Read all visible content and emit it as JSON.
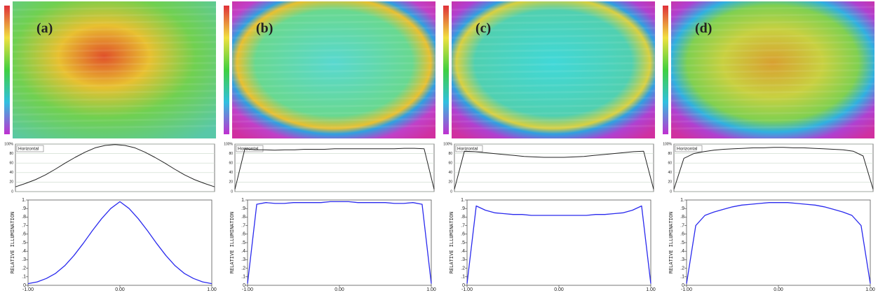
{
  "chart_data": [
    {
      "type": "line",
      "annotation": "(a)",
      "xlim": [
        -1,
        1
      ],
      "ylim": [
        0,
        100
      ],
      "yticks": [
        0,
        20,
        40,
        60,
        80,
        {
          "value": 100,
          "label": "100%"
        }
      ],
      "x": [
        -1,
        -0.9,
        -0.8,
        -0.7,
        -0.6,
        -0.5,
        -0.4,
        -0.3,
        -0.2,
        -0.1,
        0,
        0.1,
        0.2,
        0.3,
        0.4,
        0.5,
        0.6,
        0.7,
        0.8,
        0.9,
        1
      ],
      "series": [
        {
          "name": "Horizontal",
          "color": "#222222",
          "values": [
            10,
            17,
            25,
            35,
            47,
            60,
            72,
            83,
            92,
            97,
            99,
            97,
            92,
            83,
            72,
            60,
            47,
            35,
            25,
            17,
            10
          ]
        }
      ]
    },
    {
      "type": "line",
      "ylabel": "RELATIVE ILLUMINATION",
      "xlim": [
        -1,
        1
      ],
      "ylim": [
        0,
        1
      ],
      "xticks": [
        {
          "value": -1,
          "label": "-1.00"
        },
        {
          "value": 0,
          "label": "0.00"
        },
        {
          "value": 1,
          "label": "1.00"
        }
      ],
      "yticks": [
        0,
        {
          "value": 0.1,
          "label": ".1"
        },
        {
          "value": 0.2,
          "label": ".2"
        },
        {
          "value": 0.3,
          "label": ".3"
        },
        {
          "value": 0.4,
          "label": ".4"
        },
        {
          "value": 0.5,
          "label": ".5"
        },
        {
          "value": 0.6,
          "label": ".6"
        },
        {
          "value": 0.7,
          "label": ".7"
        },
        {
          "value": 0.8,
          "label": ".8"
        },
        {
          "value": 0.9,
          "label": ".9"
        },
        {
          "value": 1,
          "label": "1."
        }
      ],
      "x": [
        -1,
        -0.9,
        -0.8,
        -0.7,
        -0.6,
        -0.5,
        -0.4,
        -0.3,
        -0.2,
        -0.1,
        0,
        0.1,
        0.2,
        0.3,
        0.4,
        0.5,
        0.6,
        0.7,
        0.8,
        0.9,
        1
      ],
      "series": [
        {
          "color": "#2a2aee",
          "values": [
            0.02,
            0.04,
            0.08,
            0.14,
            0.23,
            0.35,
            0.49,
            0.64,
            0.78,
            0.9,
            0.98,
            0.9,
            0.78,
            0.64,
            0.49,
            0.35,
            0.23,
            0.14,
            0.08,
            0.04,
            0.02
          ]
        }
      ]
    },
    {
      "type": "line",
      "annotation": "(b)",
      "xlim": [
        -1,
        1
      ],
      "ylim": [
        0,
        100
      ],
      "yticks": [
        0,
        20,
        40,
        60,
        80,
        {
          "value": 100,
          "label": "100%"
        }
      ],
      "x": [
        -1,
        -0.9,
        -0.8,
        -0.7,
        -0.6,
        -0.5,
        -0.4,
        -0.3,
        -0.2,
        -0.1,
        0,
        0.1,
        0.2,
        0.3,
        0.4,
        0.5,
        0.6,
        0.7,
        0.8,
        0.9,
        1
      ],
      "series": [
        {
          "name": "Horizontal",
          "color": "#222222",
          "values": [
            5,
            90,
            88,
            88,
            87,
            88,
            88,
            89,
            89,
            89,
            90,
            90,
            90,
            90,
            90,
            90,
            90,
            91,
            91,
            90,
            5
          ]
        }
      ]
    },
    {
      "type": "line",
      "ylabel": "RELATIVE ILLUMINATION",
      "xlim": [
        -1,
        1
      ],
      "ylim": [
        0,
        1
      ],
      "xticks": [
        {
          "value": -1,
          "label": "-1.00"
        },
        {
          "value": 0,
          "label": "0.00"
        },
        {
          "value": 1,
          "label": "1.00"
        }
      ],
      "yticks": [
        0,
        {
          "value": 0.1,
          "label": ".1"
        },
        {
          "value": 0.2,
          "label": ".2"
        },
        {
          "value": 0.3,
          "label": ".3"
        },
        {
          "value": 0.4,
          "label": ".4"
        },
        {
          "value": 0.5,
          "label": ".5"
        },
        {
          "value": 0.6,
          "label": ".6"
        },
        {
          "value": 0.7,
          "label": ".7"
        },
        {
          "value": 0.8,
          "label": ".8"
        },
        {
          "value": 0.9,
          "label": ".9"
        },
        {
          "value": 1,
          "label": "1."
        }
      ],
      "x": [
        -1,
        -0.9,
        -0.8,
        -0.7,
        -0.6,
        -0.5,
        -0.4,
        -0.3,
        -0.2,
        -0.1,
        0,
        0.1,
        0.2,
        0.3,
        0.4,
        0.5,
        0.6,
        0.7,
        0.8,
        0.9,
        1
      ],
      "series": [
        {
          "color": "#2a2aee",
          "values": [
            0.02,
            0.95,
            0.97,
            0.96,
            0.96,
            0.97,
            0.97,
            0.97,
            0.97,
            0.98,
            0.98,
            0.98,
            0.97,
            0.97,
            0.97,
            0.97,
            0.96,
            0.96,
            0.97,
            0.95,
            0.02
          ]
        }
      ]
    },
    {
      "type": "line",
      "annotation": "(c)",
      "xlim": [
        -1,
        1
      ],
      "ylim": [
        0,
        100
      ],
      "yticks": [
        0,
        20,
        40,
        60,
        80,
        {
          "value": 100,
          "label": "100%"
        }
      ],
      "x": [
        -1,
        -0.9,
        -0.8,
        -0.7,
        -0.6,
        -0.5,
        -0.4,
        -0.3,
        -0.2,
        -0.1,
        0,
        0.1,
        0.2,
        0.3,
        0.4,
        0.5,
        0.6,
        0.7,
        0.8,
        0.9,
        1
      ],
      "series": [
        {
          "name": "Horizontal",
          "color": "#222222",
          "values": [
            5,
            85,
            84,
            82,
            80,
            78,
            76,
            74,
            73,
            72,
            72,
            72,
            73,
            74,
            76,
            78,
            80,
            82,
            84,
            85,
            5
          ]
        }
      ]
    },
    {
      "type": "line",
      "ylabel": "RELATIVE ILLUMINATION",
      "xlim": [
        -1,
        1
      ],
      "ylim": [
        0,
        1
      ],
      "xticks": [
        {
          "value": -1,
          "label": "-1.00"
        },
        {
          "value": 0,
          "label": "0.00"
        },
        {
          "value": 1,
          "label": "1.00"
        }
      ],
      "yticks": [
        0,
        {
          "value": 0.1,
          "label": ".1"
        },
        {
          "value": 0.2,
          "label": ".2"
        },
        {
          "value": 0.3,
          "label": ".3"
        },
        {
          "value": 0.4,
          "label": ".4"
        },
        {
          "value": 0.5,
          "label": ".5"
        },
        {
          "value": 0.6,
          "label": ".6"
        },
        {
          "value": 0.7,
          "label": ".7"
        },
        {
          "value": 0.8,
          "label": ".8"
        },
        {
          "value": 0.9,
          "label": ".9"
        },
        {
          "value": 1,
          "label": "1."
        }
      ],
      "x": [
        -1,
        -0.9,
        -0.8,
        -0.7,
        -0.6,
        -0.5,
        -0.4,
        -0.3,
        -0.2,
        -0.1,
        0,
        0.1,
        0.2,
        0.3,
        0.4,
        0.5,
        0.6,
        0.7,
        0.8,
        0.9,
        1
      ],
      "series": [
        {
          "color": "#2a2aee",
          "values": [
            0.02,
            0.93,
            0.88,
            0.85,
            0.84,
            0.83,
            0.83,
            0.82,
            0.82,
            0.82,
            0.82,
            0.82,
            0.82,
            0.82,
            0.83,
            0.83,
            0.84,
            0.85,
            0.88,
            0.93,
            0.02
          ]
        }
      ]
    },
    {
      "type": "line",
      "annotation": "(d)",
      "xlim": [
        -1,
        1
      ],
      "ylim": [
        0,
        100
      ],
      "yticks": [
        0,
        20,
        40,
        60,
        80,
        {
          "value": 100,
          "label": "100%"
        }
      ],
      "x": [
        -1,
        -0.9,
        -0.8,
        -0.7,
        -0.6,
        -0.5,
        -0.4,
        -0.3,
        -0.2,
        -0.1,
        0,
        0.1,
        0.2,
        0.3,
        0.4,
        0.5,
        0.6,
        0.7,
        0.8,
        0.9,
        1
      ],
      "series": [
        {
          "name": "Horizontal",
          "color": "#222222",
          "values": [
            5,
            70,
            80,
            84,
            87,
            89,
            90,
            91,
            92,
            92,
            93,
            93,
            92,
            92,
            91,
            90,
            89,
            88,
            85,
            75,
            5
          ]
        }
      ]
    },
    {
      "type": "line",
      "ylabel": "RELATIVE ILLUMINATION",
      "xlim": [
        -1,
        1
      ],
      "ylim": [
        0,
        1
      ],
      "xticks": [
        {
          "value": -1,
          "label": "-1.00"
        },
        {
          "value": 0,
          "label": "0.00"
        },
        {
          "value": 1,
          "label": "1.00"
        }
      ],
      "yticks": [
        0,
        {
          "value": 0.1,
          "label": ".1"
        },
        {
          "value": 0.2,
          "label": ".2"
        },
        {
          "value": 0.3,
          "label": ".3"
        },
        {
          "value": 0.4,
          "label": ".4"
        },
        {
          "value": 0.5,
          "label": ".5"
        },
        {
          "value": 0.6,
          "label": ".6"
        },
        {
          "value": 0.7,
          "label": ".7"
        },
        {
          "value": 0.8,
          "label": ".8"
        },
        {
          "value": 0.9,
          "label": ".9"
        },
        {
          "value": 1,
          "label": "1."
        }
      ],
      "x": [
        -1,
        -0.9,
        -0.8,
        -0.7,
        -0.6,
        -0.5,
        -0.4,
        -0.3,
        -0.2,
        -0.1,
        0,
        0.1,
        0.2,
        0.3,
        0.4,
        0.5,
        0.6,
        0.7,
        0.8,
        0.9,
        1
      ],
      "series": [
        {
          "color": "#2a2aee",
          "values": [
            0.02,
            0.7,
            0.82,
            0.86,
            0.89,
            0.92,
            0.94,
            0.95,
            0.96,
            0.97,
            0.97,
            0.97,
            0.96,
            0.95,
            0.94,
            0.92,
            0.89,
            0.86,
            0.82,
            0.7,
            0.02
          ]
        }
      ]
    }
  ]
}
